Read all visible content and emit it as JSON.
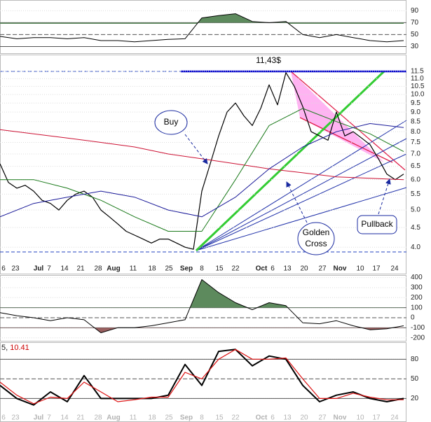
{
  "chart_data": [
    {
      "type": "line",
      "ylim": [
        20,
        108
      ],
      "yticks": [
        30,
        50,
        70,
        90
      ],
      "levels": [
        30,
        70
      ],
      "midline": 50,
      "fill_color": "#5d8a5d",
      "series": [
        {
          "color": "#000000",
          "values": [
            47,
            43,
            45,
            45,
            43,
            45,
            40,
            40,
            38,
            40,
            42,
            43,
            78,
            82,
            85,
            72,
            70,
            72,
            50,
            45,
            50,
            45,
            40,
            38,
            40
          ]
        }
      ]
    },
    {
      "type": "line",
      "log": true,
      "ylim": [
        3.65,
        12.6
      ],
      "yticks": [
        {
          "value": 4,
          "label": "4.0"
        },
        4.5,
        {
          "value": 5,
          "label": "5.0"
        },
        5.5,
        {
          "value": 6,
          "label": "6.0"
        },
        6.5,
        {
          "value": 7,
          "label": "7.0"
        },
        7.5,
        {
          "value": 8,
          "label": "8.0"
        },
        8.5,
        {
          "value": 9,
          "label": "9.0"
        },
        9.5,
        {
          "value": 10,
          "label": "10.0"
        },
        10.5,
        {
          "value": 11,
          "label": "11.0"
        },
        11.5
      ],
      "xtick_labels": [
        "6",
        "23",
        "Jul",
        "7",
        "14",
        "21",
        "28",
        "Aug",
        "11",
        "18",
        "25",
        "Sep",
        "8",
        "15",
        "22",
        "Oct",
        "6",
        "13",
        "20",
        "27",
        "Nov",
        "10",
        "17",
        "24"
      ],
      "peak_label": "11,43$",
      "buy_label": "Buy",
      "golden_cross_label": [
        "Golden",
        "Cross"
      ],
      "pullback_label": "Pullback",
      "series": [
        {
          "color": "#000000",
          "width": 1.2,
          "values": [
            6.6,
            5.9,
            5.7,
            5.8,
            5.6,
            5.3,
            5.2,
            5.0,
            5.3,
            5.5,
            5.6,
            5.4,
            5.0,
            4.8,
            4.6,
            4.4,
            4.3,
            4.2,
            4.1,
            4.2,
            4.2,
            4.1,
            4.0,
            3.95,
            5.6,
            6.6,
            7.8,
            9.0,
            9.5,
            8.8,
            8.3,
            9.2,
            10.6,
            9.4,
            11.4,
            10.5,
            9.3,
            8.0,
            7.8,
            7.6,
            9.0,
            7.8,
            8.0,
            7.7,
            7.4,
            6.8,
            6.2,
            6.0,
            6.2
          ]
        },
        {
          "color": "#cc1133",
          "width": 1,
          "values": [
            8.1,
            7.9,
            7.7,
            7.5,
            7.3,
            7.0,
            6.8,
            6.6,
            6.4,
            6.25,
            6.1,
            6.05,
            6.0
          ]
        },
        {
          "color": "#1a7a1a",
          "width": 1,
          "values": [
            6.0,
            6.0,
            5.7,
            5.3,
            4.8,
            4.4,
            4.4,
            6.0,
            8.3,
            9.2,
            8.5,
            7.9,
            7.1
          ]
        },
        {
          "color": "#1a1a99",
          "width": 1,
          "values": [
            4.8,
            5.2,
            5.4,
            5.6,
            5.4,
            5.0,
            4.8,
            5.4,
            6.4,
            7.3,
            8.0,
            8.4,
            8.2
          ]
        }
      ]
    },
    {
      "type": "line",
      "ylim": [
        -230,
        425
      ],
      "yticks": [
        -200,
        -100,
        0,
        100,
        200,
        300,
        400
      ],
      "levels": [
        -100,
        100
      ],
      "midline": 0,
      "fill_color": "#5d8a5d",
      "low_fill_color": "#9a6060",
      "series": [
        {
          "color": "#000000",
          "values": [
            50,
            20,
            0,
            -30,
            0,
            -20,
            -150,
            -100,
            -100,
            -80,
            -50,
            -20,
            380,
            250,
            150,
            80,
            150,
            120,
            -50,
            -60,
            -30,
            -80,
            -120,
            -110,
            -80
          ]
        }
      ]
    },
    {
      "type": "line",
      "ylim": [
        -16,
        105
      ],
      "yticks": [
        20,
        50,
        80
      ],
      "levels": [
        20,
        80
      ],
      "midline": 50,
      "header": "5,",
      "header_value": "10.41",
      "series": [
        {
          "color": "#000000",
          "width": 2,
          "values": [
            40,
            20,
            10,
            30,
            15,
            55,
            20,
            20,
            20,
            20,
            25,
            72,
            40,
            92,
            95,
            70,
            85,
            80,
            40,
            15,
            25,
            30,
            20,
            15,
            20
          ]
        },
        {
          "color": "#dd1111",
          "width": 1.2,
          "values": [
            45,
            25,
            12,
            22,
            20,
            45,
            30,
            15,
            18,
            22,
            22,
            60,
            50,
            80,
            95,
            80,
            80,
            82,
            50,
            20,
            20,
            28,
            22,
            18,
            18
          ]
        }
      ]
    }
  ]
}
